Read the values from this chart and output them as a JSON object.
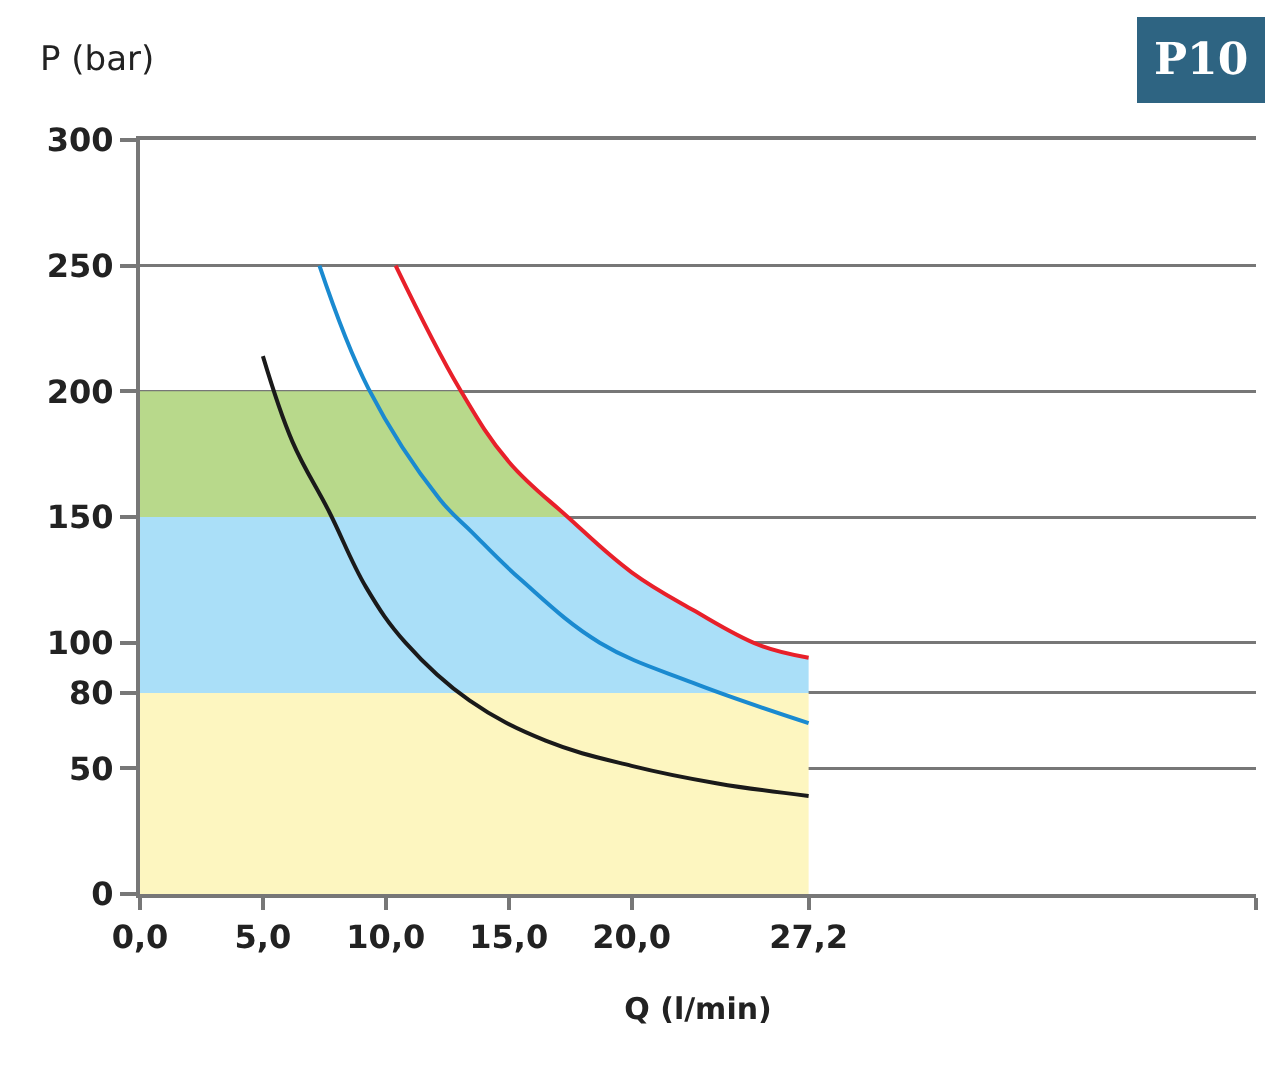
{
  "chart_data": {
    "type": "line",
    "title": "P10",
    "xlabel": "Q (l/min)",
    "ylabel": "P (bar)",
    "xlim": [
      0,
      45.4
    ],
    "ylim": [
      0,
      300
    ],
    "xticks": [
      {
        "value": 0,
        "label": "0,0"
      },
      {
        "value": 5,
        "label": "5,0"
      },
      {
        "value": 10,
        "label": "10,0"
      },
      {
        "value": 15,
        "label": "15,0"
      },
      {
        "value": 20,
        "label": "20,0"
      },
      {
        "value": 27.2,
        "label": "27,2"
      },
      {
        "value": 45.4,
        "label": null
      }
    ],
    "yticks": [
      0,
      50,
      80,
      100,
      150,
      200,
      250,
      300
    ],
    "grid": "y",
    "stacked": true,
    "marker": "none",
    "line_style": "solid",
    "series": [
      {
        "type": "area",
        "color": "#fdf6c0",
        "x": [
          0,
          13.0,
          15,
          17.4,
          20,
          22.5,
          25.2,
          27.2
        ],
        "values": [
          80,
          80,
          80,
          80,
          80,
          80,
          80,
          80
        ]
      },
      {
        "type": "area",
        "color": "#aadff8",
        "x": [
          0,
          13.0,
          15,
          17.4,
          20,
          22.5,
          25.2,
          27.2
        ],
        "values": [
          70,
          70,
          70,
          70,
          48,
          33,
          19,
          14
        ]
      },
      {
        "type": "area",
        "color": "#b8d98b",
        "x": [
          0,
          13.0,
          15,
          17.4,
          20,
          22.5,
          25.2,
          27.2
        ],
        "values": [
          50,
          50,
          22,
          0,
          0,
          0,
          0,
          0
        ]
      },
      {
        "color": "#1a1a1a",
        "x": [
          5.0,
          6.2,
          7.7,
          9.2,
          10.8,
          13.4,
          16.5,
          20.0,
          23.5,
          27.2
        ],
        "values": [
          214,
          180,
          152,
          122,
          100,
          77,
          61,
          51,
          44,
          39
        ]
      },
      {
        "color": "#1a8ad0",
        "x": [
          7.3,
          9.3,
          12.2,
          13.5,
          15.5,
          18.7,
          22.5,
          27.2
        ],
        "values": [
          250,
          201,
          157,
          144,
          125,
          100,
          84,
          68
        ]
      },
      {
        "color": "#e8202a",
        "x": [
          10.4,
          13.0,
          15,
          17.4,
          20,
          22.5,
          25.2,
          27.2
        ],
        "values": [
          250,
          201,
          172,
          150,
          128,
          113,
          99,
          94
        ]
      }
    ]
  }
}
